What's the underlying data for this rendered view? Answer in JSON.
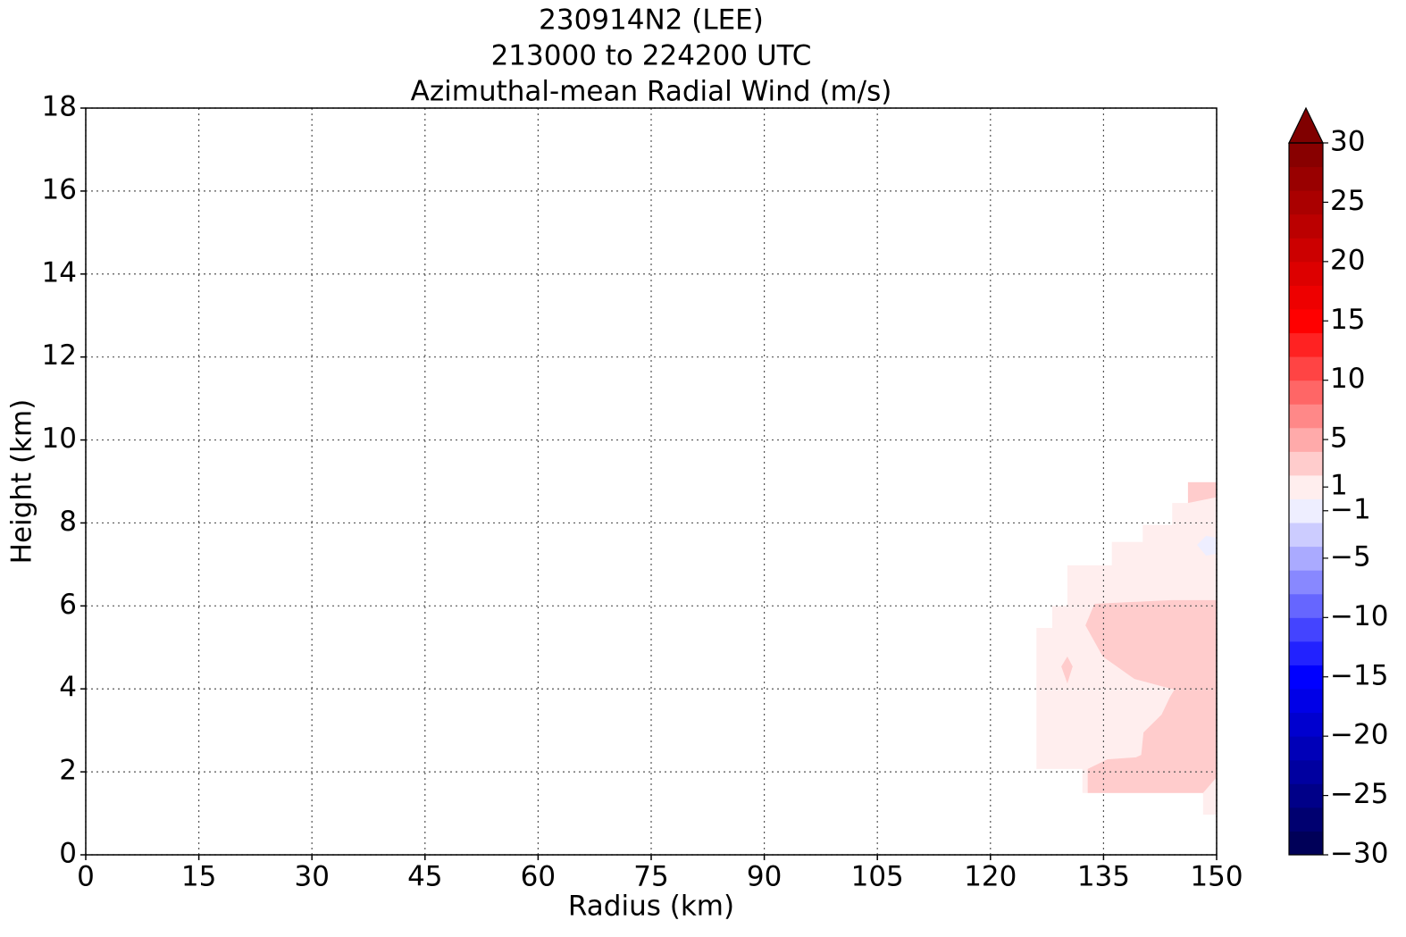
{
  "chart_data": {
    "type": "contourf",
    "title": [
      "230914N2 (LEE)",
      "213000 to 224200 UTC",
      "Azimuthal-mean Radial Wind (m/s)"
    ],
    "xlabel": "Radius (km)",
    "ylabel": "Height (km)",
    "xlim": [
      0,
      150
    ],
    "ylim": [
      0,
      18
    ],
    "xticks": [
      0,
      15,
      30,
      45,
      60,
      75,
      90,
      105,
      120,
      135,
      150
    ],
    "yticks": [
      0,
      2,
      4,
      6,
      8,
      10,
      12,
      14,
      16,
      18
    ],
    "grid": true,
    "colormap": "seismic",
    "extend": "max",
    "clim": [
      -30,
      30
    ],
    "levels": [
      -30,
      -28,
      -26,
      -24,
      -22,
      -20,
      -18,
      -16,
      -14,
      -12,
      -10,
      -8,
      -6,
      -4,
      -2,
      0,
      2,
      4,
      6,
      8,
      10,
      12,
      14,
      16,
      18,
      20,
      22,
      24,
      26,
      28,
      30
    ],
    "cbar_ticks": [
      30,
      25,
      20,
      15,
      10,
      5,
      1,
      {
        "value": -1,
        "label": "−1"
      },
      {
        "value": -5,
        "label": "−5"
      },
      {
        "value": -10,
        "label": "−10"
      },
      {
        "value": -15,
        "label": "−15"
      },
      {
        "value": -20,
        "label": "−20"
      },
      {
        "value": -25,
        "label": "−25"
      },
      {
        "value": -30,
        "label": "−30"
      }
    ],
    "regions": [
      {
        "value": 1,
        "x": [
          126.1,
          126.1,
          128.2,
          128.2,
          130.2,
          130.2,
          136.1,
          136.1,
          140.2,
          140.2,
          144.1,
          144.1,
          146.2,
          146.2,
          150,
          150,
          148.2,
          148.2,
          132.2,
          132.2
        ],
        "y": [
          2.07,
          5.47,
          5.47,
          6.0,
          6.0,
          6.98,
          6.98,
          7.54,
          7.54,
          7.95,
          7.95,
          8.48,
          8.48,
          8.98,
          8.98,
          0.97,
          0.97,
          1.49,
          1.49,
          2.07
        ]
      },
      {
        "value": 3,
        "x": [
          146.2,
          150,
          150,
          146.2
        ],
        "y": [
          8.98,
          8.98,
          8.62,
          8.48
        ]
      },
      {
        "value": 3,
        "x": [
          150,
          144,
          133.8,
          132.6,
          134.9,
          139.1,
          144.4,
          143.8,
          142.7,
          140.3,
          140,
          139.3,
          135.5,
          132.9,
          132.9,
          148.2,
          150
        ],
        "y": [
          6.14,
          6.14,
          6.05,
          5.53,
          4.78,
          4.24,
          3.98,
          3.8,
          3.38,
          2.95,
          2.41,
          2.35,
          2.3,
          2.07,
          1.49,
          1.49,
          1.87
        ]
      },
      {
        "value": 3,
        "x": [
          129.4,
          130.2,
          130.9,
          130.2
        ],
        "y": [
          4.54,
          4.78,
          4.54,
          4.13
        ]
      },
      {
        "value": -1,
        "x": [
          147.4,
          148.6,
          150,
          150,
          148.6
        ],
        "y": [
          7.47,
          7.69,
          7.64,
          7.26,
          7.21
        ]
      }
    ]
  }
}
